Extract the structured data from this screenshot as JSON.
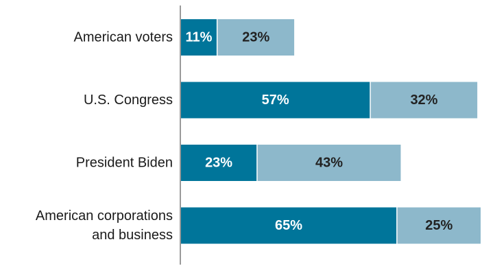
{
  "chart_data": {
    "type": "bar",
    "orientation": "horizontal",
    "stacked": true,
    "categories": [
      [
        "American voters"
      ],
      [
        "U.S. Congress"
      ],
      [
        "President Biden"
      ],
      [
        "American corporations",
        "and business"
      ]
    ],
    "series": [
      {
        "values": [
          11,
          57,
          23,
          65
        ],
        "color": "#00759a",
        "label_color": "#ffffff"
      },
      {
        "values": [
          23,
          32,
          43,
          25
        ],
        "color": "#8db8cb",
        "label_color": "#222222"
      }
    ],
    "value_suffix": "%",
    "xlim": [
      0,
      90
    ],
    "grid": false,
    "legend": "none"
  }
}
